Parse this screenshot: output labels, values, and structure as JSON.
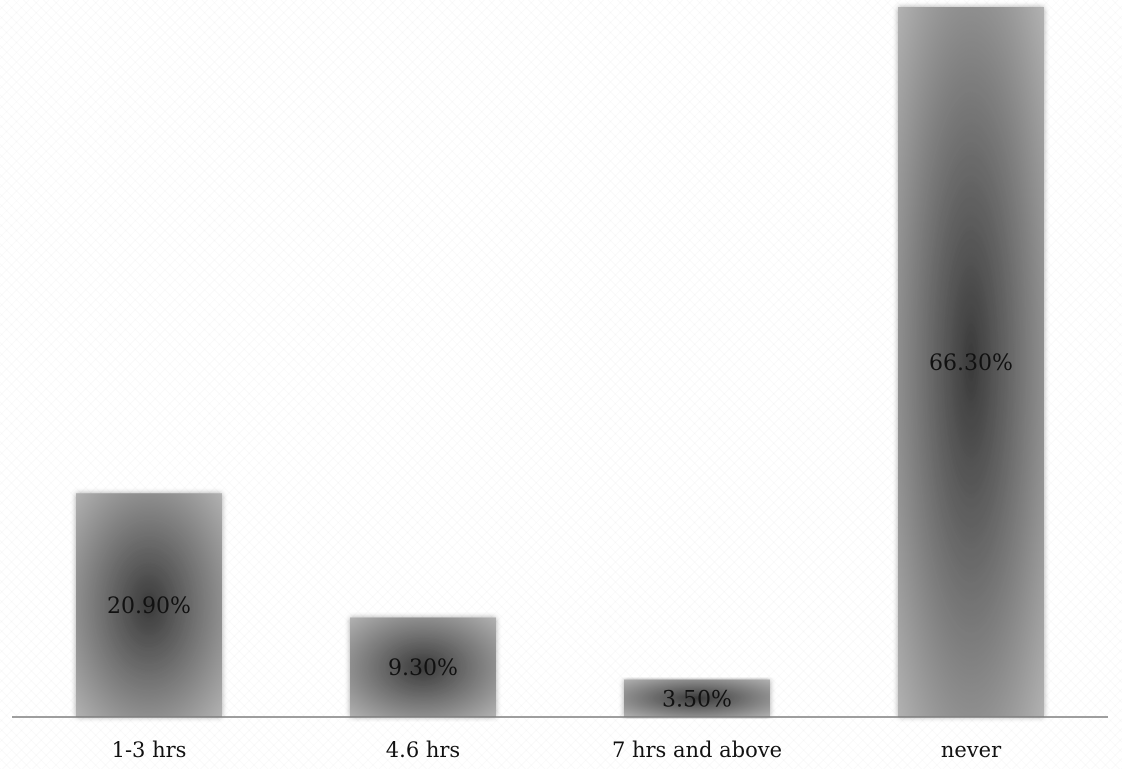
{
  "chart_data": {
    "type": "bar",
    "categories": [
      "1-3 hrs",
      "4.6 hrs",
      "7 hrs and above",
      "never"
    ],
    "values": [
      20.9,
      9.3,
      3.5,
      66.3
    ],
    "data_labels": [
      "20.90%",
      "9.30%",
      "3.50%",
      "66.30%"
    ],
    "title": "",
    "xlabel": "",
    "ylabel": "",
    "ylim": [
      0,
      66.3
    ],
    "grid": false,
    "legend": "none",
    "colors": {
      "bar_center": "#3a3a3a",
      "bar_edge": "#b9b9b9",
      "axis": "#7f7f7f",
      "text": "#111111"
    }
  }
}
